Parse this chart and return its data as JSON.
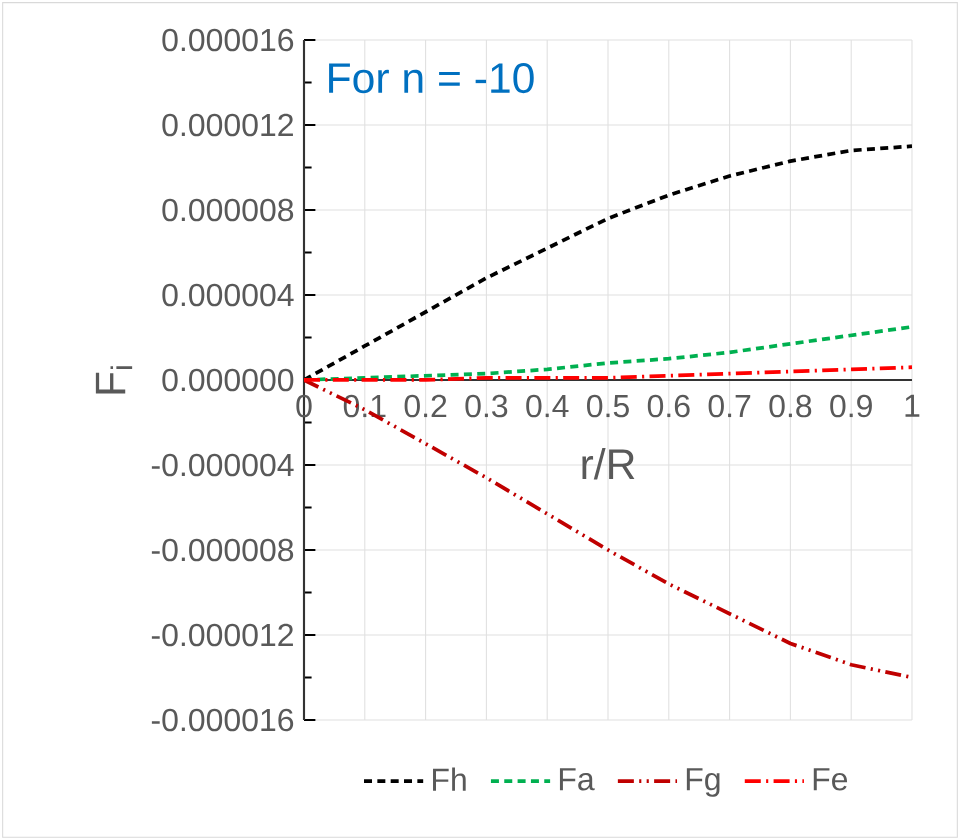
{
  "chart_data": {
    "type": "line",
    "xlabel": "r/R",
    "ylabel": "F$_{i}$",
    "annotations": [
      "For n = -10"
    ],
    "x": [
      0,
      0.1,
      0.2,
      0.3,
      0.4,
      0.5,
      0.6,
      0.7,
      0.8,
      0.9,
      1
    ],
    "xlim": [
      0,
      1
    ],
    "xticks": [
      0,
      0.1,
      0.2,
      0.3,
      0.4,
      0.5,
      0.6,
      0.7,
      0.8,
      0.9,
      1
    ],
    "ylim": [
      -1.6e-05,
      1.6e-05
    ],
    "yticks": [
      {
        "value": -1.6e-05,
        "label": "-0.000016"
      },
      {
        "value": -1.2e-05,
        "label": "-0.000012"
      },
      {
        "value": -8e-06,
        "label": "-0.000008"
      },
      {
        "value": -4e-06,
        "label": "-0.000004"
      },
      {
        "value": 0,
        "label": "0.000000"
      },
      {
        "value": 4e-06,
        "label": "0.000004"
      },
      {
        "value": 8e-06,
        "label": "0.000008"
      },
      {
        "value": 1.2e-05,
        "label": "0.000012"
      },
      {
        "value": 1.6e-05,
        "label": "0.000016"
      }
    ],
    "grid": true,
    "legend": "bottom",
    "marker": "none",
    "series": [
      {
        "name": "Fh",
        "color": "#000000",
        "line_style": "dashed",
        "values": [
          0,
          1.6e-06,
          3.2e-06,
          4.8e-06,
          6.2e-06,
          7.6e-06,
          8.7e-06,
          9.6e-06,
          1.03e-05,
          1.08e-05,
          1.1e-05
        ]
      },
      {
        "name": "Fa",
        "color": "#00b050",
        "line_style": "dashed",
        "values": [
          0,
          1e-07,
          2e-07,
          3e-07,
          5e-07,
          8e-07,
          1e-06,
          1.3e-06,
          1.7e-06,
          2.1e-06,
          2.5e-06
        ]
      },
      {
        "name": "Fg",
        "color": "#c00000",
        "line_style": "dashdotdotted",
        "values": [
          0,
          -1.4e-06,
          -3e-06,
          -4.6e-06,
          -6.3e-06,
          -8e-06,
          -9.6e-06,
          -1.1e-05,
          -1.24e-05,
          -1.34e-05,
          -1.4e-05
        ]
      },
      {
        "name": "Fe",
        "color": "#ff0000",
        "line_style": "dashdotted",
        "values": [
          0,
          0,
          0,
          1e-07,
          1e-07,
          1e-07,
          2e-07,
          3e-07,
          4e-07,
          5e-07,
          6e-07
        ]
      }
    ]
  }
}
